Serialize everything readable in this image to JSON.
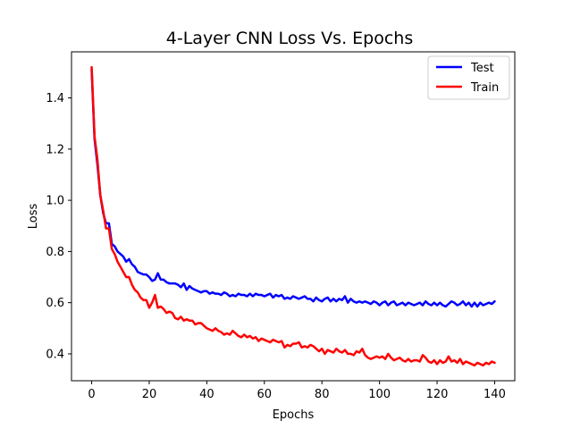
{
  "chart_data": {
    "type": "line",
    "title": "4-Layer CNN Loss Vs. Epochs",
    "xlabel": "Epochs",
    "ylabel": "Loss",
    "xlim": [
      -7,
      147
    ],
    "ylim": [
      0.295,
      1.58
    ],
    "xticks": [
      0,
      20,
      40,
      60,
      80,
      100,
      120,
      140
    ],
    "yticks": [
      0.4,
      0.6,
      0.8,
      1.0,
      1.2,
      1.4
    ],
    "xtick_labels": [
      "0",
      "20",
      "40",
      "60",
      "80",
      "100",
      "120",
      "140"
    ],
    "ytick_labels": [
      "0.4",
      "0.6",
      "0.8",
      "1.0",
      "1.2",
      "1.4"
    ],
    "grid": false,
    "legend_position": "top-right",
    "series": [
      {
        "name": "Test",
        "color": "#0000ff",
        "x": [
          0,
          1,
          2,
          3,
          4,
          5,
          6,
          7,
          8,
          9,
          10,
          11,
          12,
          13,
          14,
          15,
          16,
          17,
          18,
          19,
          20,
          21,
          22,
          23,
          24,
          25,
          26,
          27,
          28,
          29,
          30,
          31,
          32,
          33,
          34,
          35,
          36,
          37,
          38,
          39,
          40,
          41,
          42,
          43,
          44,
          45,
          46,
          47,
          48,
          49,
          50,
          51,
          52,
          53,
          54,
          55,
          56,
          57,
          58,
          59,
          60,
          61,
          62,
          63,
          64,
          65,
          66,
          67,
          68,
          69,
          70,
          71,
          72,
          73,
          74,
          75,
          76,
          77,
          78,
          79,
          80,
          81,
          82,
          83,
          84,
          85,
          86,
          87,
          88,
          89,
          90,
          91,
          92,
          93,
          94,
          95,
          96,
          97,
          98,
          99,
          100,
          101,
          102,
          103,
          104,
          105,
          106,
          107,
          108,
          109,
          110,
          111,
          112,
          113,
          114,
          115,
          116,
          117,
          118,
          119,
          120,
          121,
          122,
          123,
          124,
          125,
          126,
          127,
          128,
          129,
          130,
          131,
          132,
          133,
          134,
          135,
          136,
          137,
          138,
          139,
          140
        ],
        "y": [
          1.51,
          1.24,
          1.14,
          1.02,
          0.95,
          0.91,
          0.91,
          0.83,
          0.82,
          0.8,
          0.79,
          0.78,
          0.76,
          0.77,
          0.75,
          0.74,
          0.72,
          0.715,
          0.71,
          0.71,
          0.7,
          0.685,
          0.69,
          0.715,
          0.69,
          0.69,
          0.68,
          0.675,
          0.675,
          0.675,
          0.67,
          0.66,
          0.675,
          0.65,
          0.665,
          0.655,
          0.65,
          0.645,
          0.64,
          0.645,
          0.645,
          0.635,
          0.64,
          0.635,
          0.635,
          0.63,
          0.64,
          0.635,
          0.625,
          0.63,
          0.625,
          0.635,
          0.63,
          0.63,
          0.625,
          0.635,
          0.625,
          0.635,
          0.63,
          0.63,
          0.625,
          0.63,
          0.635,
          0.62,
          0.63,
          0.625,
          0.63,
          0.615,
          0.62,
          0.615,
          0.625,
          0.62,
          0.615,
          0.62,
          0.625,
          0.615,
          0.615,
          0.605,
          0.62,
          0.61,
          0.605,
          0.615,
          0.62,
          0.605,
          0.615,
          0.605,
          0.615,
          0.61,
          0.625,
          0.6,
          0.615,
          0.605,
          0.6,
          0.605,
          0.6,
          0.605,
          0.6,
          0.595,
          0.605,
          0.6,
          0.59,
          0.6,
          0.605,
          0.59,
          0.6,
          0.605,
          0.59,
          0.595,
          0.6,
          0.59,
          0.6,
          0.595,
          0.59,
          0.595,
          0.6,
          0.59,
          0.605,
          0.595,
          0.59,
          0.6,
          0.59,
          0.6,
          0.59,
          0.585,
          0.595,
          0.605,
          0.6,
          0.59,
          0.595,
          0.605,
          0.59,
          0.6,
          0.585,
          0.6,
          0.585,
          0.6,
          0.59,
          0.595,
          0.6,
          0.595,
          0.605
        ]
      },
      {
        "name": "Train",
        "color": "#ff0000",
        "x": [
          0,
          1,
          2,
          3,
          4,
          5,
          6,
          7,
          8,
          9,
          10,
          11,
          12,
          13,
          14,
          15,
          16,
          17,
          18,
          19,
          20,
          21,
          22,
          23,
          24,
          25,
          26,
          27,
          28,
          29,
          30,
          31,
          32,
          33,
          34,
          35,
          36,
          37,
          38,
          39,
          40,
          41,
          42,
          43,
          44,
          45,
          46,
          47,
          48,
          49,
          50,
          51,
          52,
          53,
          54,
          55,
          56,
          57,
          58,
          59,
          60,
          61,
          62,
          63,
          64,
          65,
          66,
          67,
          68,
          69,
          70,
          71,
          72,
          73,
          74,
          75,
          76,
          77,
          78,
          79,
          80,
          81,
          82,
          83,
          84,
          85,
          86,
          87,
          88,
          89,
          90,
          91,
          92,
          93,
          94,
          95,
          96,
          97,
          98,
          99,
          100,
          101,
          102,
          103,
          104,
          105,
          106,
          107,
          108,
          109,
          110,
          111,
          112,
          113,
          114,
          115,
          116,
          117,
          118,
          119,
          120,
          121,
          122,
          123,
          124,
          125,
          126,
          127,
          128,
          129,
          130,
          131,
          132,
          133,
          134,
          135,
          136,
          137,
          138,
          139,
          140
        ],
        "y": [
          1.52,
          1.25,
          1.16,
          1.02,
          0.96,
          0.89,
          0.89,
          0.81,
          0.79,
          0.76,
          0.74,
          0.72,
          0.7,
          0.7,
          0.67,
          0.65,
          0.64,
          0.62,
          0.61,
          0.61,
          0.58,
          0.6,
          0.63,
          0.58,
          0.585,
          0.575,
          0.56,
          0.565,
          0.56,
          0.54,
          0.535,
          0.545,
          0.53,
          0.535,
          0.53,
          0.53,
          0.515,
          0.52,
          0.52,
          0.51,
          0.5,
          0.495,
          0.49,
          0.5,
          0.49,
          0.485,
          0.475,
          0.48,
          0.475,
          0.49,
          0.48,
          0.47,
          0.465,
          0.475,
          0.465,
          0.47,
          0.46,
          0.465,
          0.45,
          0.46,
          0.455,
          0.45,
          0.445,
          0.455,
          0.45,
          0.445,
          0.45,
          0.425,
          0.435,
          0.43,
          0.44,
          0.44,
          0.445,
          0.425,
          0.43,
          0.425,
          0.435,
          0.43,
          0.42,
          0.41,
          0.42,
          0.4,
          0.415,
          0.41,
          0.405,
          0.42,
          0.41,
          0.405,
          0.415,
          0.4,
          0.4,
          0.395,
          0.41,
          0.405,
          0.42,
          0.395,
          0.385,
          0.38,
          0.385,
          0.39,
          0.385,
          0.39,
          0.38,
          0.4,
          0.385,
          0.375,
          0.38,
          0.385,
          0.375,
          0.37,
          0.38,
          0.37,
          0.375,
          0.375,
          0.37,
          0.395,
          0.385,
          0.37,
          0.365,
          0.375,
          0.36,
          0.375,
          0.365,
          0.37,
          0.39,
          0.37,
          0.375,
          0.365,
          0.38,
          0.36,
          0.37,
          0.365,
          0.36,
          0.355,
          0.365,
          0.36,
          0.355,
          0.365,
          0.36,
          0.37,
          0.365
        ]
      }
    ]
  }
}
